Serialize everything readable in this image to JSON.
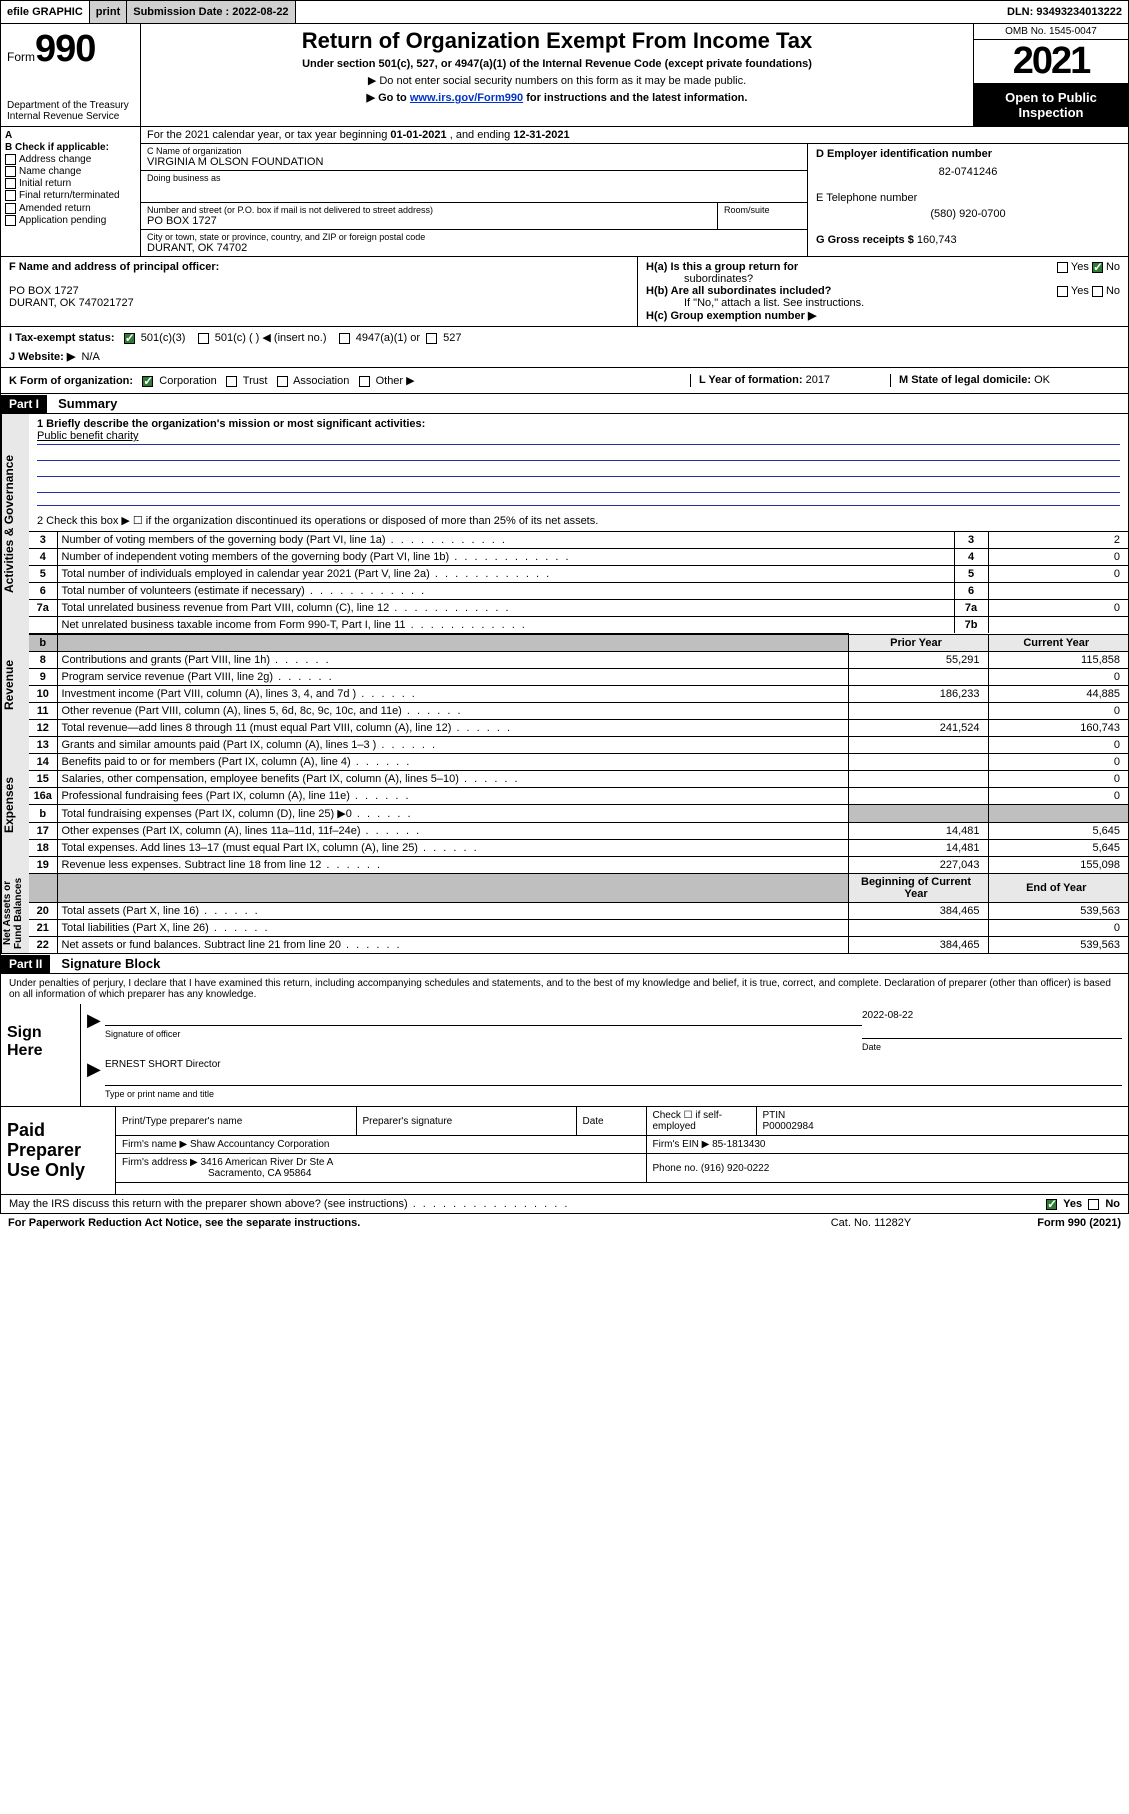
{
  "topbar": {
    "efile": "efile GRAPHIC",
    "print": "print",
    "submission_label": "Submission Date :",
    "submission_date": "2022-08-22",
    "dln_label": "DLN:",
    "dln": "93493234013222"
  },
  "header": {
    "form_prefix": "Form",
    "form_num": "990",
    "dept": "Department of the Treasury\nInternal Revenue Service",
    "title": "Return of Organization Exempt From Income Tax",
    "subtitle1": "Under section 501(c), 527, or 4947(a)(1) of the Internal Revenue Code (except private foundations)",
    "subtitle2": "▶ Do not enter social security numbers on this form as it may be made public.",
    "subtitle3_pre": "▶ Go to ",
    "subtitle3_link": "www.irs.gov/Form990",
    "subtitle3_post": " for instructions and the latest information.",
    "omb": "OMB No. 1545-0047",
    "year": "2021",
    "open_public": "Open to Public\nInspection"
  },
  "rowA": {
    "text_pre": "For the 2021 calendar year, or tax year beginning ",
    "begin": "01-01-2021",
    "mid": " , and ending ",
    "end": "12-31-2021"
  },
  "colB": {
    "label": "B Check if applicable:",
    "opts": [
      "Address change",
      "Name change",
      "Initial return",
      "Final return/terminated",
      "Amended return",
      "Application pending"
    ]
  },
  "colC": {
    "name_label": "C Name of organization",
    "name": "VIRGINIA M OLSON FOUNDATION",
    "dba_label": "Doing business as",
    "dba": "",
    "street_label": "Number and street (or P.O. box if mail is not delivered to street address)",
    "room_label": "Room/suite",
    "street": "PO BOX 1727",
    "city_label": "City or town, state or province, country, and ZIP or foreign postal code",
    "city": "DURANT, OK  74702"
  },
  "colD": {
    "ein_label": "D Employer identification number",
    "ein": "82-0741246",
    "phone_label": "E Telephone number",
    "phone": "(580) 920-0700",
    "gross_label": "G Gross receipts $",
    "gross": "160,743"
  },
  "rowF": {
    "label": "F  Name and address of principal officer:",
    "line1": "PO BOX 1727",
    "line2": "DURANT, OK  747021727"
  },
  "rowH": {
    "ha": "H(a)  Is this a group return for",
    "ha2": "subordinates?",
    "hb": "H(b)  Are all subordinates included?",
    "hb2": "If \"No,\" attach a list. See instructions.",
    "hc": "H(c)  Group exemption number ▶",
    "yes": "Yes",
    "no": "No"
  },
  "rowI": {
    "label": "I   Tax-exempt status:",
    "opt1": "501(c)(3)",
    "opt2": "501(c) (  ) ◀ (insert no.)",
    "opt3": "4947(a)(1) or",
    "opt4": "527"
  },
  "rowJ": {
    "label": "J   Website: ▶",
    "value": "N/A"
  },
  "rowK": {
    "label": "K Form of organization:",
    "opts": [
      "Corporation",
      "Trust",
      "Association",
      "Other ▶"
    ],
    "year_label": "L Year of formation:",
    "year": "2017",
    "state_label": "M State of legal domicile:",
    "state": "OK"
  },
  "part1": {
    "bar": "Part I",
    "title": "Summary",
    "mission_label": "1   Briefly describe the organization's mission or most significant activities:",
    "mission": "Public benefit charity",
    "line2": "2   Check this box ▶ ☐  if the organization discontinued its operations or disposed of more than 25% of its net assets.",
    "rows_gov": [
      {
        "n": "3",
        "t": "Number of voting members of the governing body (Part VI, line 1a)",
        "box": "3",
        "v": "2"
      },
      {
        "n": "4",
        "t": "Number of independent voting members of the governing body (Part VI, line 1b)",
        "box": "4",
        "v": "0"
      },
      {
        "n": "5",
        "t": "Total number of individuals employed in calendar year 2021 (Part V, line 2a)",
        "box": "5",
        "v": "0"
      },
      {
        "n": "6",
        "t": "Total number of volunteers (estimate if necessary)",
        "box": "6",
        "v": ""
      },
      {
        "n": "7a",
        "t": "Total unrelated business revenue from Part VIII, column (C), line 12",
        "box": "7a",
        "v": "0"
      },
      {
        "n": "",
        "t": "Net unrelated business taxable income from Form 990-T, Part I, line 11",
        "box": "7b",
        "v": ""
      }
    ],
    "prior_label": "Prior Year",
    "current_label": "Current Year",
    "rows_rev": [
      {
        "n": "8",
        "t": "Contributions and grants (Part VIII, line 1h)",
        "p": "55,291",
        "c": "115,858"
      },
      {
        "n": "9",
        "t": "Program service revenue (Part VIII, line 2g)",
        "p": "",
        "c": "0"
      },
      {
        "n": "10",
        "t": "Investment income (Part VIII, column (A), lines 3, 4, and 7d )",
        "p": "186,233",
        "c": "44,885"
      },
      {
        "n": "11",
        "t": "Other revenue (Part VIII, column (A), lines 5, 6d, 8c, 9c, 10c, and 11e)",
        "p": "",
        "c": "0"
      },
      {
        "n": "12",
        "t": "Total revenue—add lines 8 through 11 (must equal Part VIII, column (A), line 12)",
        "p": "241,524",
        "c": "160,743"
      }
    ],
    "rows_exp": [
      {
        "n": "13",
        "t": "Grants and similar amounts paid (Part IX, column (A), lines 1–3 )",
        "p": "",
        "c": "0"
      },
      {
        "n": "14",
        "t": "Benefits paid to or for members (Part IX, column (A), line 4)",
        "p": "",
        "c": "0"
      },
      {
        "n": "15",
        "t": "Salaries, other compensation, employee benefits (Part IX, column (A), lines 5–10)",
        "p": "",
        "c": "0"
      },
      {
        "n": "16a",
        "t": "Professional fundraising fees (Part IX, column (A), line 11e)",
        "p": "",
        "c": "0"
      },
      {
        "n": "b",
        "t": "Total fundraising expenses (Part IX, column (D), line 25) ▶0",
        "p": "grey",
        "c": "grey"
      },
      {
        "n": "17",
        "t": "Other expenses (Part IX, column (A), lines 11a–11d, 11f–24e)",
        "p": "14,481",
        "c": "5,645"
      },
      {
        "n": "18",
        "t": "Total expenses. Add lines 13–17 (must equal Part IX, column (A), line 25)",
        "p": "14,481",
        "c": "5,645"
      },
      {
        "n": "19",
        "t": "Revenue less expenses. Subtract line 18 from line 12",
        "p": "227,043",
        "c": "155,098"
      }
    ],
    "begin_label": "Beginning of Current Year",
    "end_label": "End of Year",
    "rows_net": [
      {
        "n": "20",
        "t": "Total assets (Part X, line 16)",
        "p": "384,465",
        "c": "539,563"
      },
      {
        "n": "21",
        "t": "Total liabilities (Part X, line 26)",
        "p": "",
        "c": "0"
      },
      {
        "n": "22",
        "t": "Net assets or fund balances. Subtract line 21 from line 20",
        "p": "384,465",
        "c": "539,563"
      }
    ],
    "side_gov": "Activities & Governance",
    "side_rev": "Revenue",
    "side_exp": "Expenses",
    "side_net": "Net Assets or\nFund Balances"
  },
  "part2": {
    "bar": "Part II",
    "title": "Signature Block",
    "penalty": "Under penalties of perjury, I declare that I have examined this return, including accompanying schedules and statements, and to the best of my knowledge and belief, it is true, correct, and complete. Declaration of preparer (other than officer) is based on all information of which preparer has any knowledge.",
    "sign_here": "Sign\nHere",
    "sig_officer": "Signature of officer",
    "date_label": "Date",
    "sig_date": "2022-08-22",
    "name_title": "ERNEST SHORT  Director",
    "type_name": "Type or print name and title",
    "paid_label": "Paid\nPreparer\nUse Only",
    "prep_hdr": [
      "Print/Type preparer's name",
      "Preparer's signature",
      "Date"
    ],
    "check_if": "Check ☐ if self-employed",
    "ptin_label": "PTIN",
    "ptin": "P00002984",
    "firm_name_label": "Firm's name   ▶",
    "firm_name": "Shaw Accountancy Corporation",
    "firm_ein_label": "Firm's EIN ▶",
    "firm_ein": "85-1813430",
    "firm_addr_label": "Firm's address ▶",
    "firm_addr1": "3416 American River Dr Ste A",
    "firm_addr2": "Sacramento, CA  95864",
    "phone_label": "Phone no.",
    "phone": "(916) 920-0222"
  },
  "footer": {
    "discuss": "May the IRS discuss this return with the preparer shown above? (see instructions)",
    "yes": "Yes",
    "no": "No",
    "paperwork": "For Paperwork Reduction Act Notice, see the separate instructions.",
    "cat": "Cat. No. 11282Y",
    "form": "Form 990 (2021)"
  }
}
